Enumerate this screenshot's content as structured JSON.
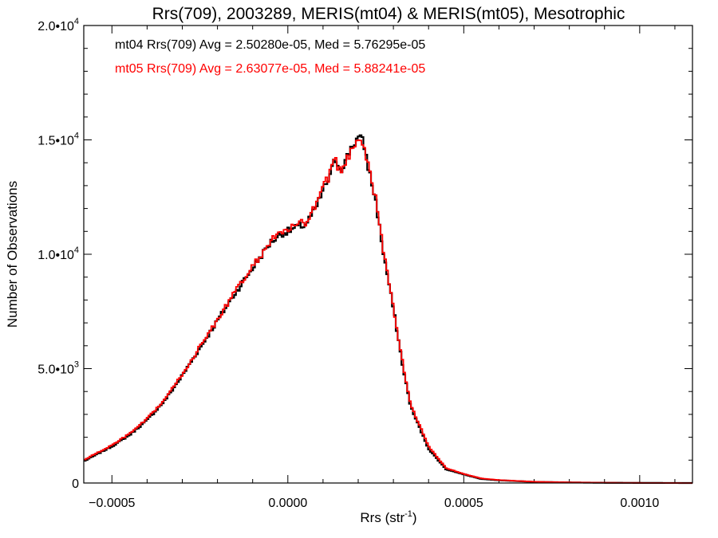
{
  "chart_data": {
    "type": "line",
    "title": "Rrs(709), 2003289, MERIS(mt04) & MERIS(mt05), Mesotrophic",
    "xlabel": "Rrs (str",
    "xlabel_sup": "-1",
    "xlabel_close": ")",
    "ylabel": "Number of Observations",
    "xlim": [
      -0.00058,
      0.00115
    ],
    "ylim": [
      0,
      20000
    ],
    "x_ticks": [
      {
        "value": -0.0005,
        "label": "-0.0005"
      },
      {
        "value": 0.0,
        "label": "0.0000"
      },
      {
        "value": 0.0005,
        "label": "0.0005"
      },
      {
        "value": 0.001,
        "label": "0.0010"
      }
    ],
    "y_ticks": [
      {
        "value": 0,
        "mant": "0",
        "exp": ""
      },
      {
        "value": 5000,
        "mant": "5.0•10",
        "exp": "3"
      },
      {
        "value": 10000,
        "mant": "1.0•10",
        "exp": "4"
      },
      {
        "value": 15000,
        "mant": "1.5•10",
        "exp": "4"
      },
      {
        "value": 20000,
        "mant": "2.0•10",
        "exp": "4"
      }
    ],
    "annotations": [
      {
        "text": "mt04 Rrs(709) Avg = 2.50280e-05, Med = 5.76295e-05",
        "color": "#000000"
      },
      {
        "text": "mt05 Rrs(709) Avg = 2.63077e-05, Med = 5.88241e-05",
        "color": "#ff0000"
      }
    ],
    "series": [
      {
        "color": "#000000",
        "x": [
          -0.00058,
          -0.00055,
          -0.0005,
          -0.00045,
          -0.0004,
          -0.00035,
          -0.0003,
          -0.00025,
          -0.0002,
          -0.00015,
          -0.0001,
          -5e-05,
          -2e-05,
          0.0,
          3e-05,
          5e-05,
          8e-05,
          0.0001,
          0.00012,
          0.000135,
          0.00015,
          0.000165,
          0.00018,
          0.0002,
          0.000215,
          0.00023,
          0.00025,
          0.00027,
          0.0003,
          0.00033,
          0.00035,
          0.0004,
          0.00045,
          0.0005,
          0.00055,
          0.0006,
          0.0007,
          0.0008,
          0.0009,
          0.001,
          0.00115
        ],
        "y": [
          950,
          1200,
          1600,
          2100,
          2750,
          3600,
          4700,
          5900,
          7100,
          8300,
          9400,
          10500,
          10900,
          11000,
          11200,
          11300,
          12000,
          12800,
          13400,
          14200,
          13700,
          14100,
          14700,
          15100,
          14900,
          13700,
          12300,
          10200,
          7600,
          4800,
          3300,
          1500,
          600,
          380,
          180,
          120,
          50,
          25,
          10,
          5,
          0
        ]
      },
      {
        "color": "#ff0000",
        "x": [
          -0.00058,
          -0.00055,
          -0.0005,
          -0.00045,
          -0.0004,
          -0.00035,
          -0.0003,
          -0.00025,
          -0.0002,
          -0.00015,
          -0.0001,
          -5e-05,
          -2e-05,
          0.0,
          3e-05,
          5e-05,
          8e-05,
          0.0001,
          0.00012,
          0.000135,
          0.00015,
          0.000165,
          0.00018,
          0.0002,
          0.000215,
          0.00023,
          0.00025,
          0.00027,
          0.0003,
          0.00033,
          0.00035,
          0.0004,
          0.00045,
          0.0005,
          0.00055,
          0.0006,
          0.0007,
          0.0008,
          0.0009,
          0.001,
          0.00115
        ],
        "y": [
          1000,
          1250,
          1650,
          2150,
          2800,
          3650,
          4750,
          5950,
          7150,
          8350,
          9450,
          10550,
          10950,
          11050,
          11300,
          11400,
          12100,
          12900,
          13500,
          14100,
          13600,
          14000,
          14600,
          15100,
          14900,
          13800,
          12400,
          10300,
          7700,
          4900,
          3400,
          1600,
          650,
          400,
          200,
          130,
          55,
          28,
          12,
          6,
          0
        ]
      }
    ]
  }
}
